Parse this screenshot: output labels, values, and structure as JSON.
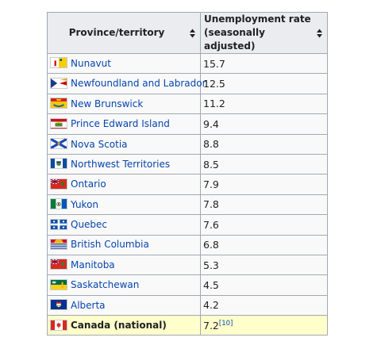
{
  "table": {
    "headers": {
      "province": "Province/territory",
      "rate_line1": "Unemployment rate",
      "rate_line2": "(seasonally adjusted)"
    },
    "rows": [
      {
        "name": "Nunavut",
        "rate": "15.7",
        "flag": "flag-nunavut-icon"
      },
      {
        "name": "Newfoundland and Labrador",
        "rate": "12.5",
        "flag": "flag-newfoundland-icon"
      },
      {
        "name": "New Brunswick",
        "rate": "11.2",
        "flag": "flag-new-brunswick-icon"
      },
      {
        "name": "Prince Edward Island",
        "rate": "9.4",
        "flag": "flag-pei-icon"
      },
      {
        "name": "Nova Scotia",
        "rate": "8.8",
        "flag": "flag-nova-scotia-icon"
      },
      {
        "name": "Northwest Territories",
        "rate": "8.5",
        "flag": "flag-nwt-icon"
      },
      {
        "name": "Ontario",
        "rate": "7.9",
        "flag": "flag-ontario-icon"
      },
      {
        "name": "Yukon",
        "rate": "7.8",
        "flag": "flag-yukon-icon"
      },
      {
        "name": "Quebec",
        "rate": "7.6",
        "flag": "flag-quebec-icon"
      },
      {
        "name": "British Columbia",
        "rate": "6.8",
        "flag": "flag-bc-icon"
      },
      {
        "name": "Manitoba",
        "rate": "5.3",
        "flag": "flag-manitoba-icon"
      },
      {
        "name": "Saskatchewan",
        "rate": "4.5",
        "flag": "flag-saskatchewan-icon"
      },
      {
        "name": "Alberta",
        "rate": "4.2",
        "flag": "flag-alberta-icon"
      }
    ],
    "national": {
      "name": "Canada (national)",
      "rate": "7.2",
      "ref": "[10]",
      "flag": "flag-canada-icon"
    }
  },
  "colors": {
    "header_bg": "#eaecf0",
    "border": "#a2a9b1",
    "link": "#0645ad",
    "national_bg": "#ffffcc"
  }
}
